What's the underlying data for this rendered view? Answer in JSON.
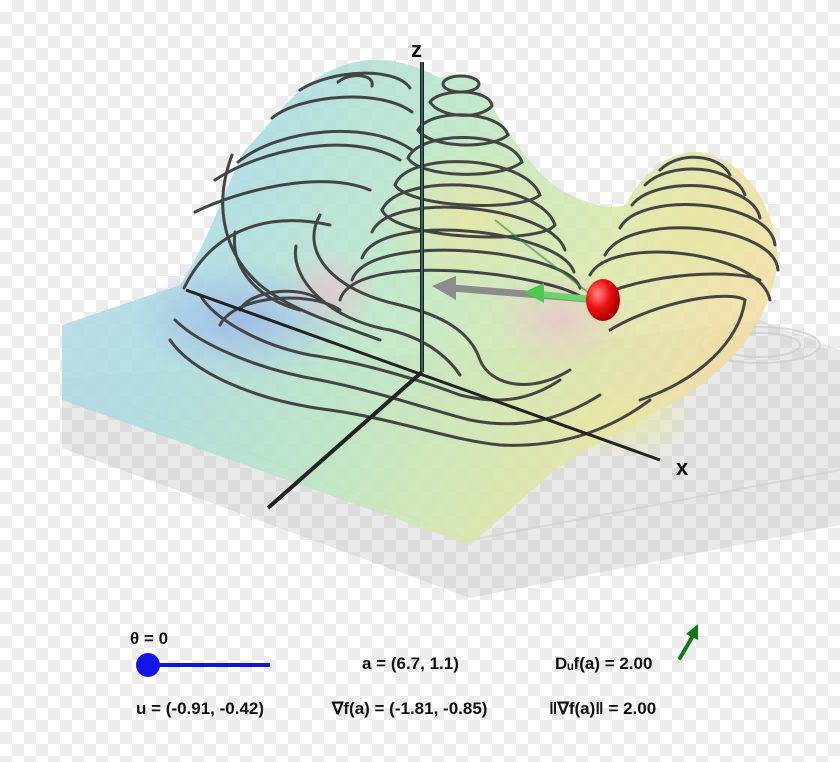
{
  "axes": {
    "z_label": "z",
    "x_label": "x"
  },
  "controls": {
    "theta_label": "θ = 0",
    "theta_value": 0,
    "point_a": "a = (6.7, 1.1)",
    "directional_derivative": "Dᵤf(a) = 2.00",
    "unit_vector": "u = (-0.91, -0.42)",
    "gradient": "∇f(a) = (-1.81, -0.85)",
    "gradient_norm": "‖∇f(a)‖ = 2.00"
  },
  "colors": {
    "slider": "#1414e6",
    "point": "#e80000",
    "gradient_arrow": "#8c8c8c",
    "direction_arrow": "#127a12",
    "contour": "#444444"
  }
}
